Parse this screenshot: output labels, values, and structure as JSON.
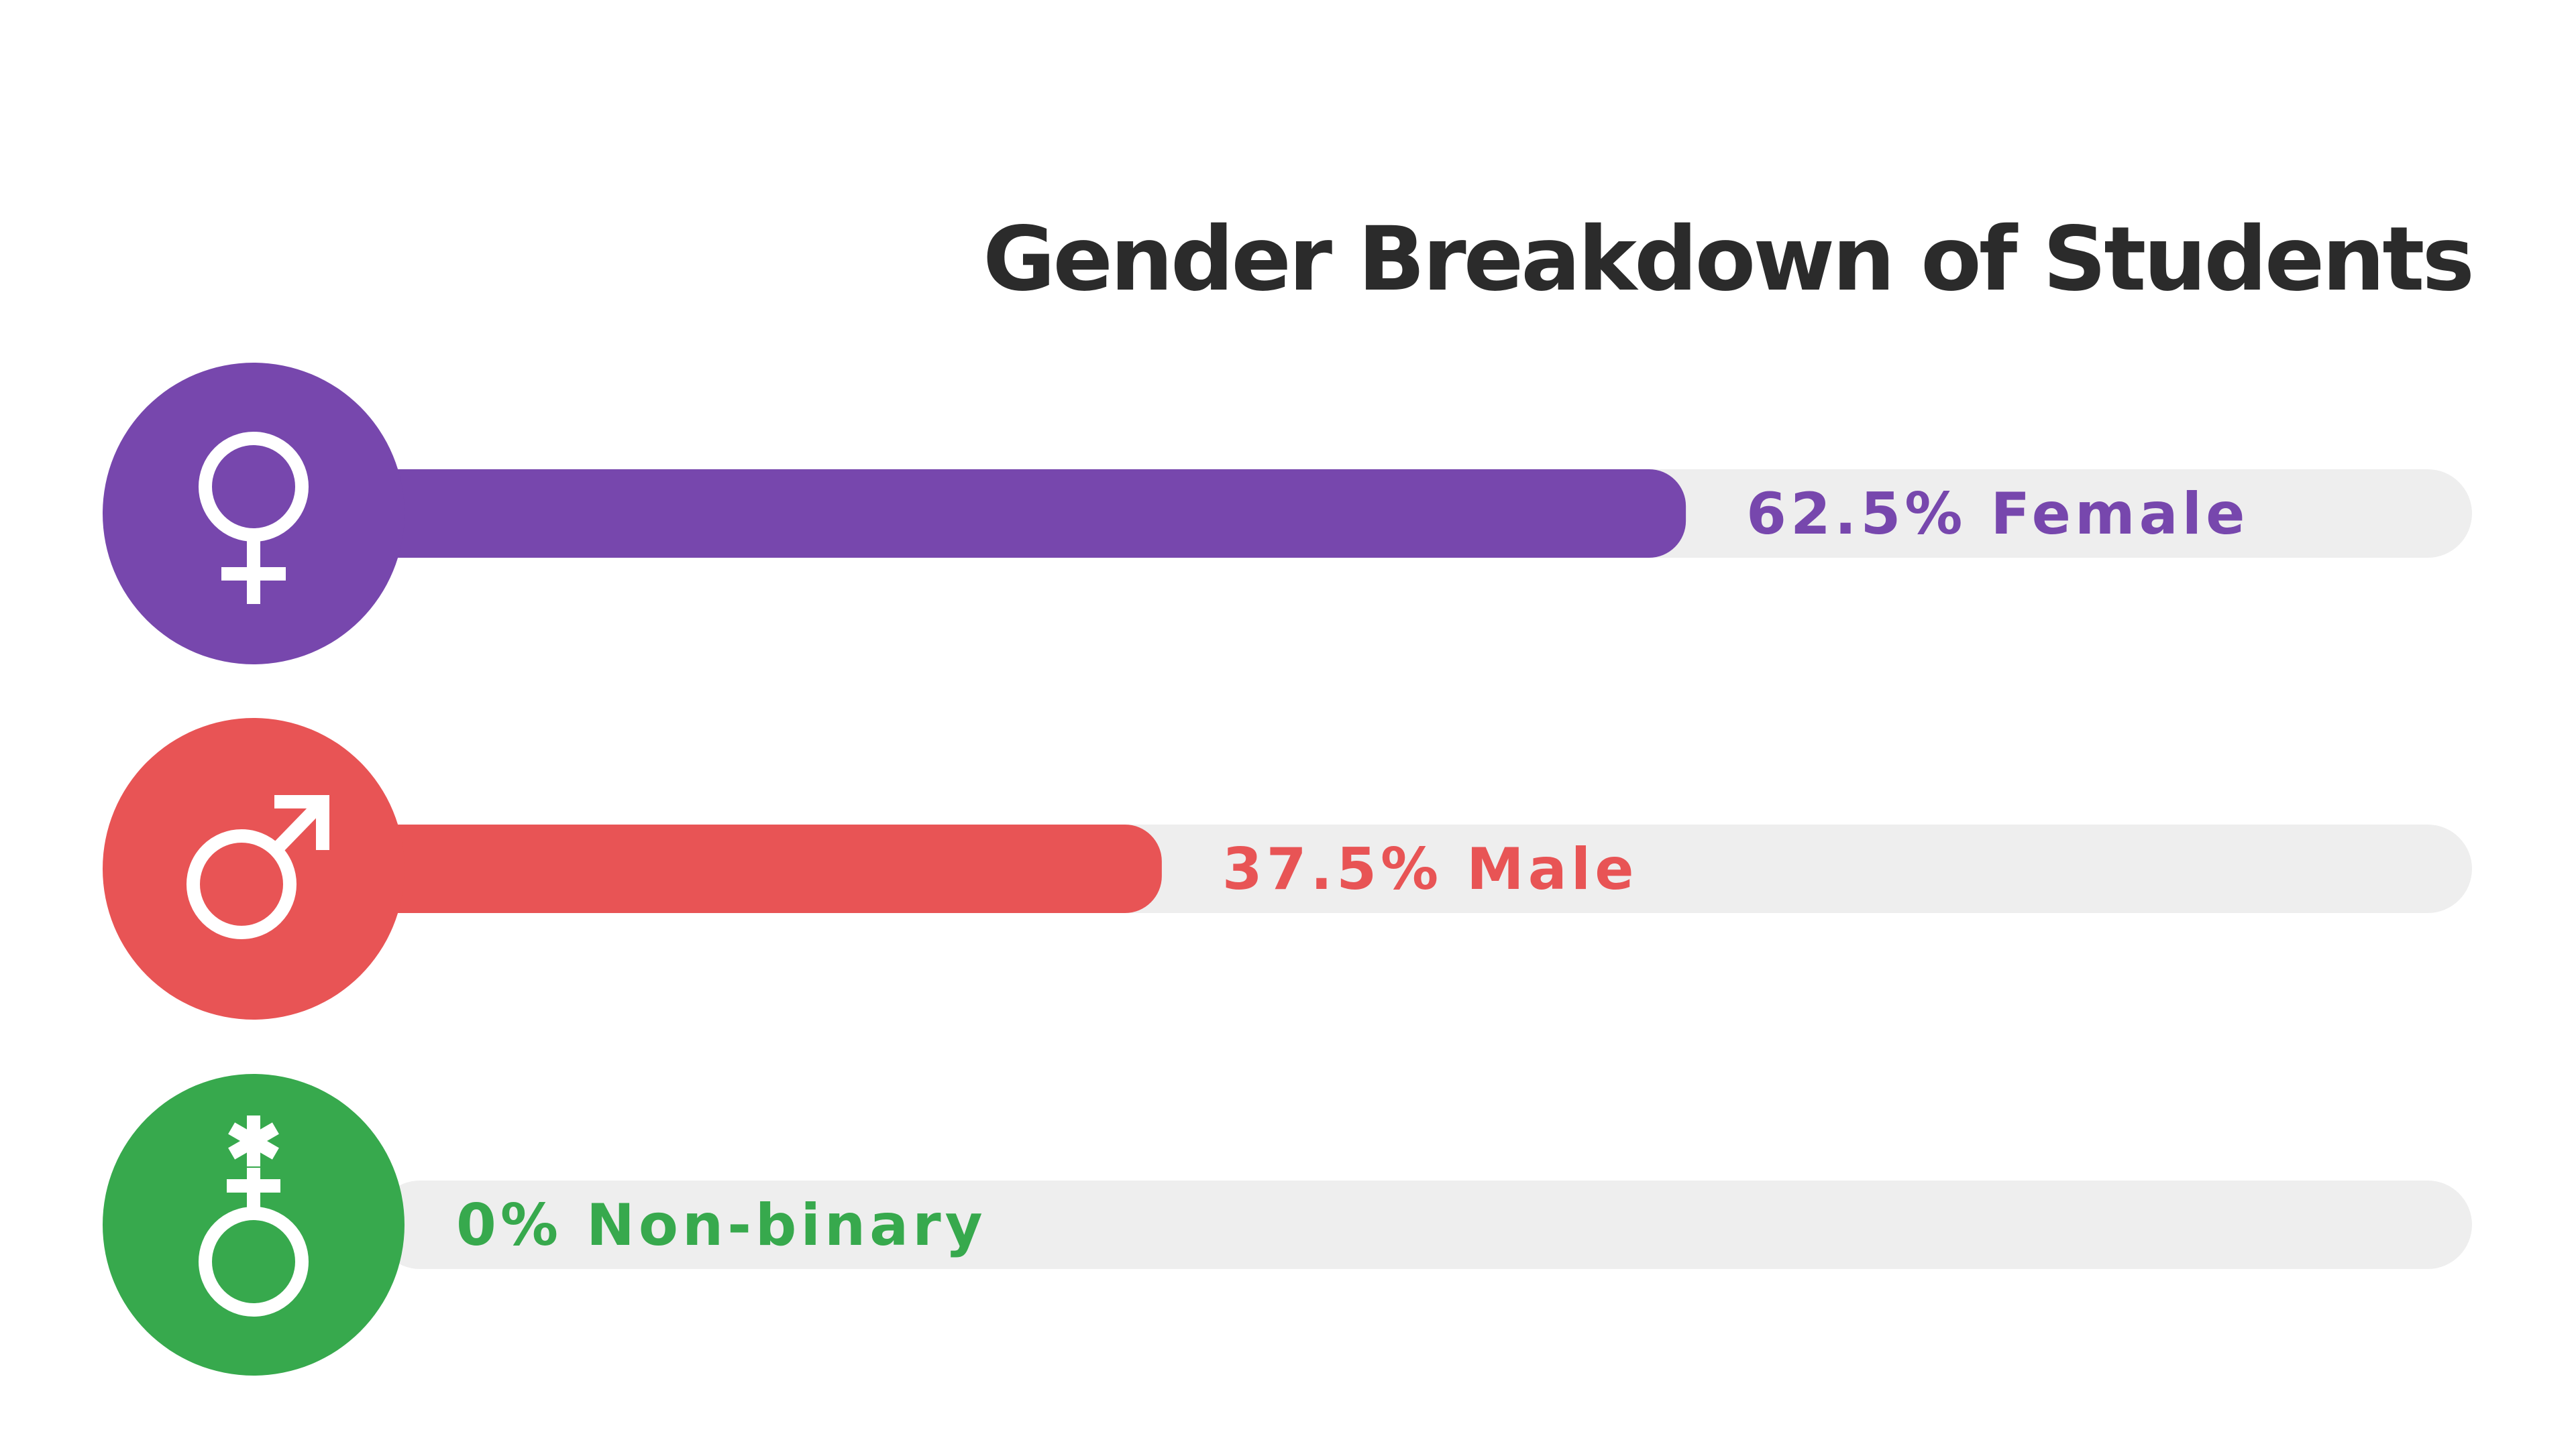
{
  "chart_data": {
    "type": "bar",
    "title": "Gender Breakdown of Students",
    "ylim": [
      0,
      100
    ],
    "orientation": "horizontal",
    "grid": false,
    "legend": "none",
    "series": [
      {
        "name": "Female",
        "value": 62.5,
        "label": "62.5% Female",
        "color": "#7747AD",
        "icon": "female-symbol-icon"
      },
      {
        "name": "Male",
        "value": 37.5,
        "label": "37.5% Male",
        "color": "#E85455",
        "icon": "male-symbol-icon"
      },
      {
        "name": "Non-binary",
        "value": 0,
        "label": "0% Non-binary",
        "color": "#37A94D",
        "icon": "nonbinary-symbol-icon"
      }
    ],
    "title_color": "#2B2B2B",
    "track_color": "#EEEEEE"
  }
}
